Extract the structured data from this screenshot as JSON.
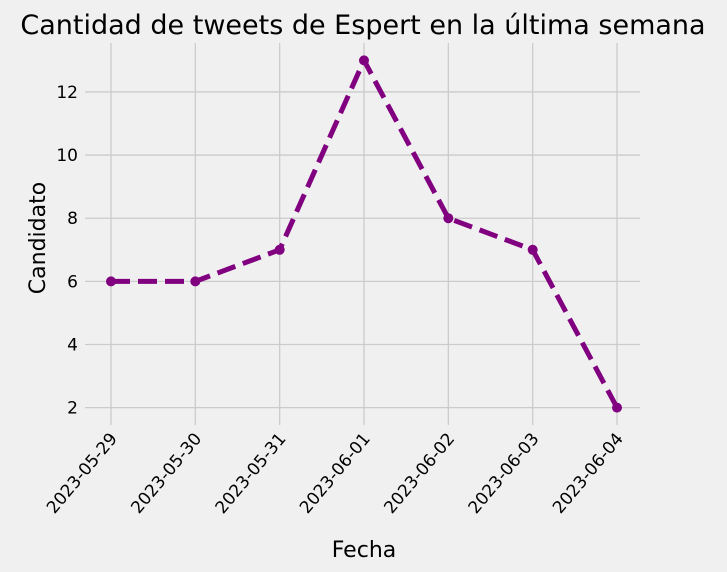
{
  "chart_data": {
    "type": "line",
    "title": "Cantidad de tweets de Espert en la última semana",
    "xlabel": "Fecha",
    "ylabel": "Candidato",
    "categories": [
      "2023-05-29",
      "2023-05-30",
      "2023-05-31",
      "2023-06-01",
      "2023-06-02",
      "2023-06-03",
      "2023-06-04"
    ],
    "series": [
      {
        "values": [
          6,
          6,
          7,
          13,
          8,
          7,
          2
        ],
        "color": "#800080",
        "line_style": "dashed",
        "marker": "circle"
      }
    ],
    "ylim": [
      1.45,
      13.55
    ],
    "yticks": [
      2,
      4,
      6,
      8,
      10,
      12
    ],
    "grid": true,
    "background": "#f0f0f0",
    "gridline_color": "#cbcbcb"
  }
}
